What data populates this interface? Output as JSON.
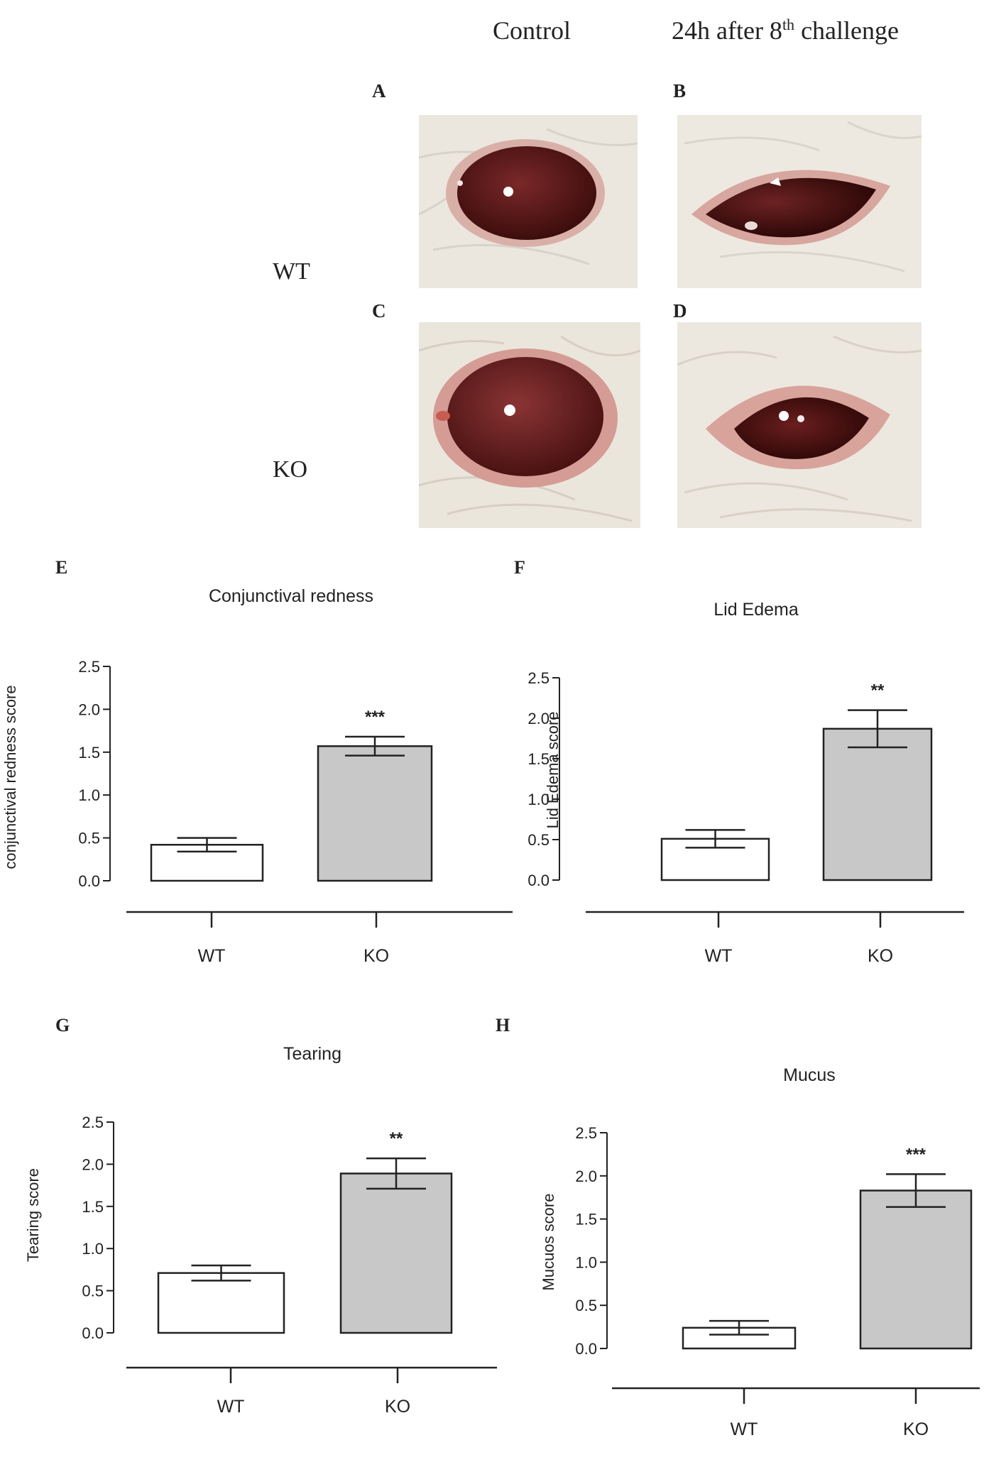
{
  "header": {
    "col_control": "Control",
    "col_challenge_prefix": "24h after 8",
    "col_challenge_sup": "th",
    "col_challenge_suffix": " challenge"
  },
  "photos": {
    "letters": [
      "A",
      "B",
      "C",
      "D"
    ],
    "row_labels": [
      "WT",
      "KO"
    ],
    "colors": {
      "fur": "#ece9e2",
      "iris": "#5a1a1a",
      "rim": "#d9a8a0",
      "highlight": "#ffffff"
    }
  },
  "chart_data": [
    {
      "type": "bar",
      "panel": "E",
      "title": "Conjunctival redness",
      "ylabel": "conjunctival redness score",
      "categories": [
        "WT",
        "KO"
      ],
      "values": [
        0.42,
        1.57
      ],
      "errors": [
        0.08,
        0.11
      ],
      "significance": "***",
      "ylim": [
        0,
        2.5
      ],
      "yticks": [
        "0.0",
        "0.5",
        "1.0",
        "1.5",
        "2.0",
        "2.5"
      ],
      "colors": [
        "#ffffff",
        "#c8c8c8"
      ]
    },
    {
      "type": "bar",
      "panel": "F",
      "title": "Lid Edema",
      "ylabel": "Lid Edema score",
      "categories": [
        "WT",
        "KO"
      ],
      "values": [
        0.51,
        1.87
      ],
      "errors": [
        0.11,
        0.23
      ],
      "significance": "**",
      "ylim": [
        0,
        2.5
      ],
      "yticks": [
        "0.0",
        "0.5",
        "1.0",
        "1.5",
        "2.0",
        "2.5"
      ],
      "colors": [
        "#ffffff",
        "#c8c8c8"
      ]
    },
    {
      "type": "bar",
      "panel": "G",
      "title": "Tearing",
      "ylabel": "Tearing score",
      "categories": [
        "WT",
        "KO"
      ],
      "values": [
        0.71,
        1.89
      ],
      "errors": [
        0.09,
        0.18
      ],
      "significance": "**",
      "ylim": [
        0,
        2.5
      ],
      "yticks": [
        "0.0",
        "0.5",
        "1.0",
        "1.5",
        "2.0",
        "2.5"
      ],
      "colors": [
        "#ffffff",
        "#c8c8c8"
      ]
    },
    {
      "type": "bar",
      "panel": "H",
      "title": "Mucus",
      "ylabel": "Mucuos score",
      "categories": [
        "WT",
        "KO"
      ],
      "values": [
        0.24,
        1.83
      ],
      "errors": [
        0.08,
        0.19
      ],
      "significance": "***",
      "ylim": [
        0,
        2.5
      ],
      "yticks": [
        "0.0",
        "0.5",
        "1.0",
        "1.5",
        "2.0",
        "2.5"
      ],
      "colors": [
        "#ffffff",
        "#c8c8c8"
      ]
    }
  ]
}
